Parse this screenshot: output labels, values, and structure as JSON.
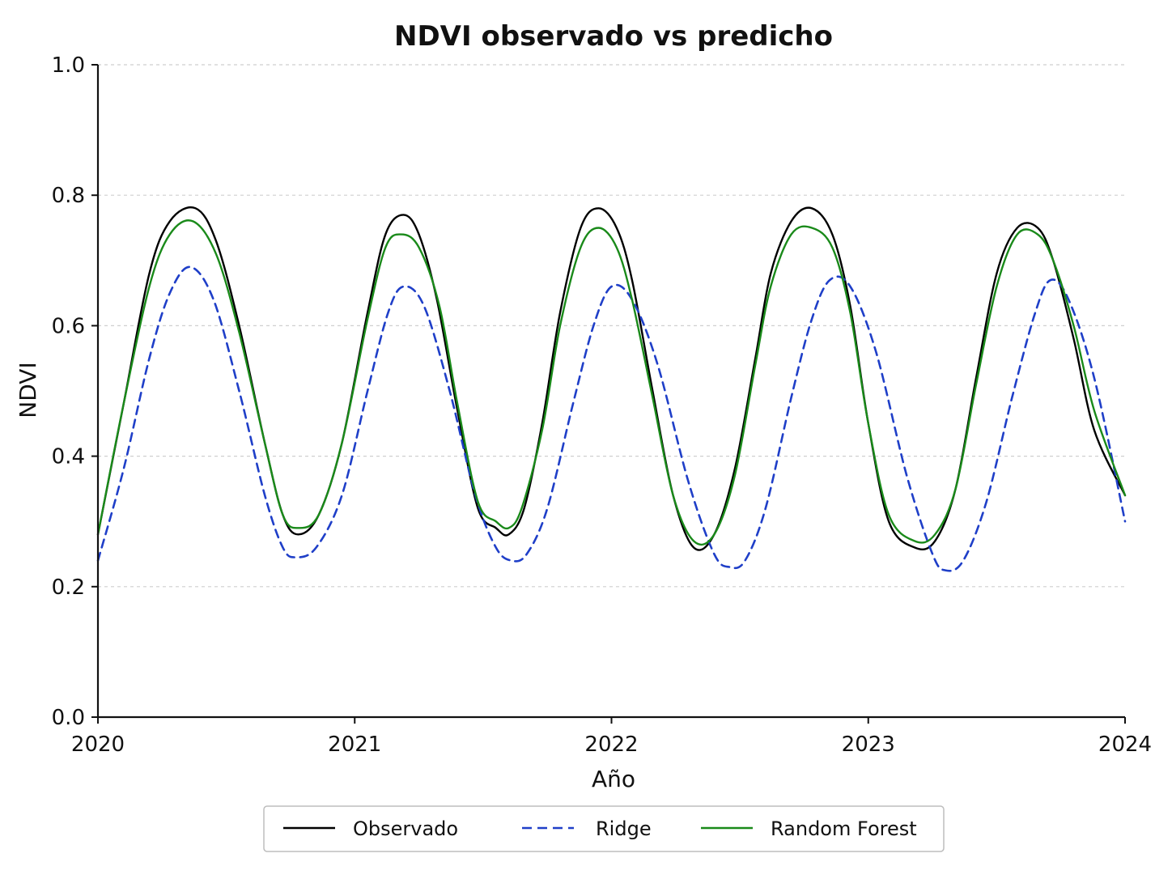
{
  "chart_data": {
    "type": "line",
    "title": "NDVI observado vs predicho",
    "xlabel": "Año",
    "ylabel": "NDVI",
    "xlim": [
      2020,
      2024
    ],
    "ylim": [
      0.0,
      1.0
    ],
    "xticks": [
      "2020",
      "2021",
      "2022",
      "2023",
      "2024"
    ],
    "yticks": [
      "0.0",
      "0.2",
      "0.4",
      "0.6",
      "0.8",
      "1.0"
    ],
    "grid": "horizontal dashed",
    "legend_position": "bottom-center",
    "series": [
      {
        "name": "Observado",
        "color": "#000000",
        "style": "solid",
        "x": [
          2020.0,
          2020.1,
          2020.2,
          2020.28,
          2020.38,
          2020.46,
          2020.55,
          2020.65,
          2020.72,
          2020.78,
          2020.86,
          2020.95,
          2021.05,
          2021.12,
          2021.19,
          2021.25,
          2021.32,
          2021.4,
          2021.48,
          2021.55,
          2021.6,
          2021.66,
          2021.73,
          2021.8,
          2021.88,
          2021.95,
          2022.02,
          2022.08,
          2022.16,
          2022.24,
          2022.32,
          2022.4,
          2022.48,
          2022.56,
          2022.62,
          2022.7,
          2022.78,
          2022.86,
          2022.93,
          2023.0,
          2023.08,
          2023.18,
          2023.26,
          2023.34,
          2023.42,
          2023.5,
          2023.58,
          2023.66,
          2023.72,
          2023.8,
          2023.88,
          2024.0
        ],
        "y": [
          0.28,
          0.48,
          0.68,
          0.76,
          0.78,
          0.73,
          0.6,
          0.42,
          0.31,
          0.28,
          0.31,
          0.42,
          0.62,
          0.74,
          0.77,
          0.74,
          0.64,
          0.47,
          0.32,
          0.29,
          0.28,
          0.32,
          0.45,
          0.62,
          0.75,
          0.78,
          0.75,
          0.67,
          0.5,
          0.34,
          0.26,
          0.28,
          0.38,
          0.55,
          0.68,
          0.76,
          0.78,
          0.74,
          0.63,
          0.45,
          0.3,
          0.26,
          0.27,
          0.35,
          0.52,
          0.68,
          0.75,
          0.75,
          0.7,
          0.58,
          0.44,
          0.34
        ]
      },
      {
        "name": "Ridge",
        "color": "#1f3fc8",
        "style": "dashed",
        "x": [
          2020.0,
          2020.1,
          2020.2,
          2020.28,
          2020.36,
          2020.45,
          2020.55,
          2020.65,
          2020.72,
          2020.77,
          2020.85,
          2020.95,
          2021.05,
          2021.13,
          2021.19,
          2021.27,
          2021.37,
          2021.47,
          2021.55,
          2021.61,
          2021.67,
          2021.75,
          2021.85,
          2021.93,
          2022.0,
          2022.08,
          2022.18,
          2022.3,
          2022.4,
          2022.46,
          2022.52,
          2022.6,
          2022.7,
          2022.78,
          2022.85,
          2022.93,
          2023.03,
          2023.15,
          2023.25,
          2023.3,
          2023.37,
          2023.46,
          2023.56,
          2023.65,
          2023.71,
          2023.78,
          2023.88,
          2024.0
        ],
        "y": [
          0.24,
          0.38,
          0.55,
          0.65,
          0.69,
          0.64,
          0.5,
          0.34,
          0.26,
          0.245,
          0.26,
          0.34,
          0.5,
          0.62,
          0.66,
          0.63,
          0.5,
          0.34,
          0.26,
          0.24,
          0.25,
          0.32,
          0.48,
          0.6,
          0.66,
          0.64,
          0.54,
          0.36,
          0.25,
          0.23,
          0.24,
          0.32,
          0.49,
          0.61,
          0.67,
          0.66,
          0.56,
          0.37,
          0.25,
          0.225,
          0.24,
          0.33,
          0.49,
          0.62,
          0.67,
          0.64,
          0.52,
          0.3
        ]
      },
      {
        "name": "Random Forest",
        "color": "#1a8a1a",
        "style": "solid",
        "x": [
          2020.0,
          2020.1,
          2020.2,
          2020.28,
          2020.37,
          2020.46,
          2020.55,
          2020.65,
          2020.72,
          2020.78,
          2020.86,
          2020.95,
          2021.05,
          2021.12,
          2021.18,
          2021.25,
          2021.33,
          2021.4,
          2021.48,
          2021.55,
          2021.6,
          2021.65,
          2021.73,
          2021.8,
          2021.88,
          2021.95,
          2022.02,
          2022.08,
          2022.16,
          2022.24,
          2022.32,
          2022.4,
          2022.48,
          2022.56,
          2022.62,
          2022.7,
          2022.78,
          2022.86,
          2022.93,
          2023.0,
          2023.08,
          2023.18,
          2023.26,
          2023.34,
          2023.42,
          2023.5,
          2023.58,
          2023.66,
          2023.72,
          2023.8,
          2023.88,
          2024.0
        ],
        "y": [
          0.28,
          0.48,
          0.66,
          0.74,
          0.76,
          0.71,
          0.59,
          0.42,
          0.31,
          0.29,
          0.31,
          0.42,
          0.61,
          0.72,
          0.74,
          0.72,
          0.63,
          0.48,
          0.33,
          0.3,
          0.29,
          0.32,
          0.44,
          0.6,
          0.72,
          0.75,
          0.72,
          0.64,
          0.49,
          0.34,
          0.27,
          0.28,
          0.37,
          0.54,
          0.66,
          0.74,
          0.75,
          0.72,
          0.62,
          0.45,
          0.31,
          0.27,
          0.28,
          0.35,
          0.51,
          0.66,
          0.74,
          0.74,
          0.7,
          0.6,
          0.47,
          0.34
        ]
      }
    ]
  }
}
